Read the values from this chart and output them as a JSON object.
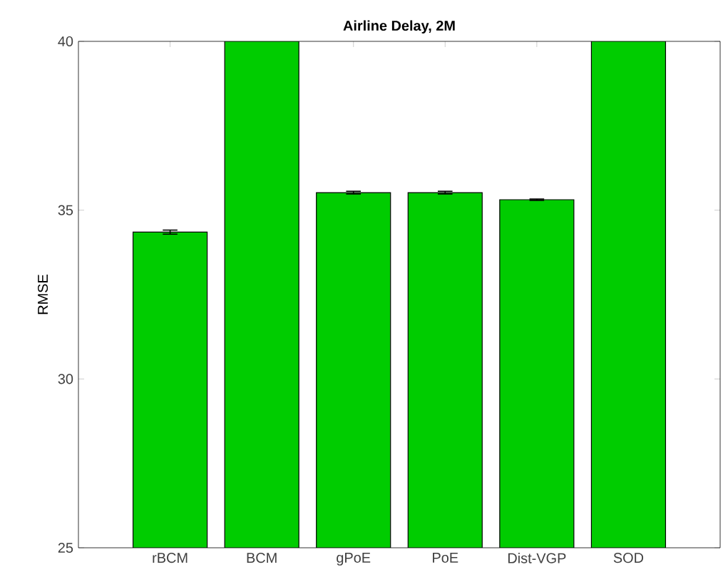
{
  "chart_data": {
    "type": "bar",
    "title": "Airline Delay, 2M",
    "ylabel": "RMSE",
    "categories": [
      "rBCM",
      "BCM",
      "gPoE",
      "PoE",
      "Dist-VGP",
      "SOD"
    ],
    "values": [
      34.35,
      40,
      35.52,
      35.52,
      35.31,
      40
    ],
    "errors": [
      0.06,
      null,
      0.04,
      0.04,
      0.02,
      null
    ],
    "color": "#00cc00",
    "ylim": [
      25,
      40
    ],
    "yticks": [
      25,
      30,
      35,
      40
    ],
    "grid": false
  }
}
